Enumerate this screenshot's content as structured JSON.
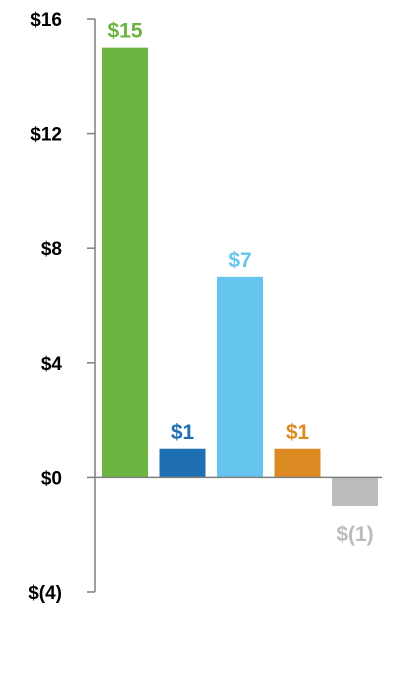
{
  "chart_data": {
    "type": "bar",
    "title": "",
    "xlabel": "",
    "ylabel": "",
    "ylim": [
      -4,
      16
    ],
    "yticks": [
      16,
      12,
      8,
      4,
      0,
      -4
    ],
    "ytick_labels": [
      "$16",
      "$12",
      "$8",
      "$4",
      "$0",
      "$(4)"
    ],
    "grid": false,
    "legend": "none",
    "values": [
      15,
      1,
      7,
      1,
      -1
    ],
    "data_labels": [
      "$15",
      "$1",
      "$7",
      "$1",
      "$(1)"
    ],
    "colors": [
      "#6db33f",
      "#1f6fb5",
      "#66c5ef",
      "#dc8b22",
      "#bcbcbc"
    ]
  }
}
